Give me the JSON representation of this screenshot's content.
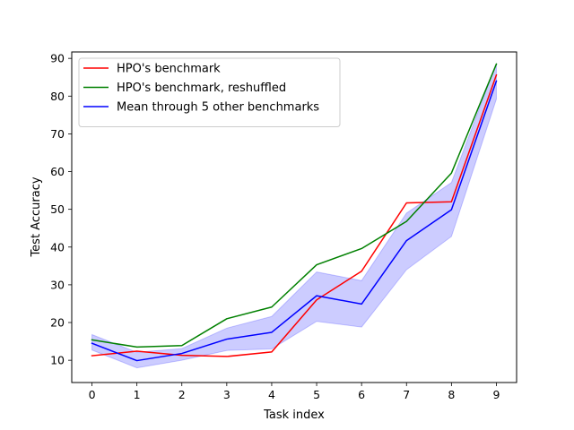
{
  "chart_data": {
    "type": "line",
    "xlabel": "Task index",
    "ylabel": "Test Accuracy",
    "x": [
      0,
      1,
      2,
      3,
      4,
      5,
      6,
      7,
      8,
      9
    ],
    "xlim": [
      -0.45,
      9.45
    ],
    "ylim": [
      4.1,
      91.7
    ],
    "xticks": [
      "0",
      "1",
      "2",
      "3",
      "4",
      "5",
      "6",
      "7",
      "8",
      "9"
    ],
    "yticks": [
      10,
      20,
      30,
      40,
      50,
      60,
      70,
      80,
      90
    ],
    "grid": false,
    "legend_position": "upper-left",
    "series": [
      {
        "name": "HPO's benchmark",
        "color": "#ff0000",
        "values": [
          11.2,
          12.4,
          11.3,
          11.0,
          12.2,
          26.0,
          33.6,
          51.7,
          52.0,
          85.6
        ]
      },
      {
        "name": "HPO's benchmark, reshuffled",
        "color": "#008000",
        "values": [
          15.4,
          13.5,
          13.9,
          21.0,
          24.1,
          35.3,
          39.6,
          46.8,
          59.6,
          88.5
        ]
      },
      {
        "name": "Mean through 5 other benchmarks",
        "color": "#0000ff",
        "values": [
          14.5,
          9.9,
          11.8,
          15.6,
          17.4,
          27.1,
          24.9,
          41.7,
          49.9,
          84.0
        ],
        "band": {
          "color": "#0000ff",
          "opacity": 0.2,
          "lower": [
            12.7,
            8.0,
            10.0,
            12.6,
            13.0,
            20.3,
            18.8,
            34.0,
            42.8,
            79.2
          ],
          "upper": [
            16.8,
            12.1,
            13.1,
            18.5,
            21.6,
            33.4,
            31.1,
            49.0,
            57.1,
            88.7
          ]
        }
      }
    ]
  }
}
